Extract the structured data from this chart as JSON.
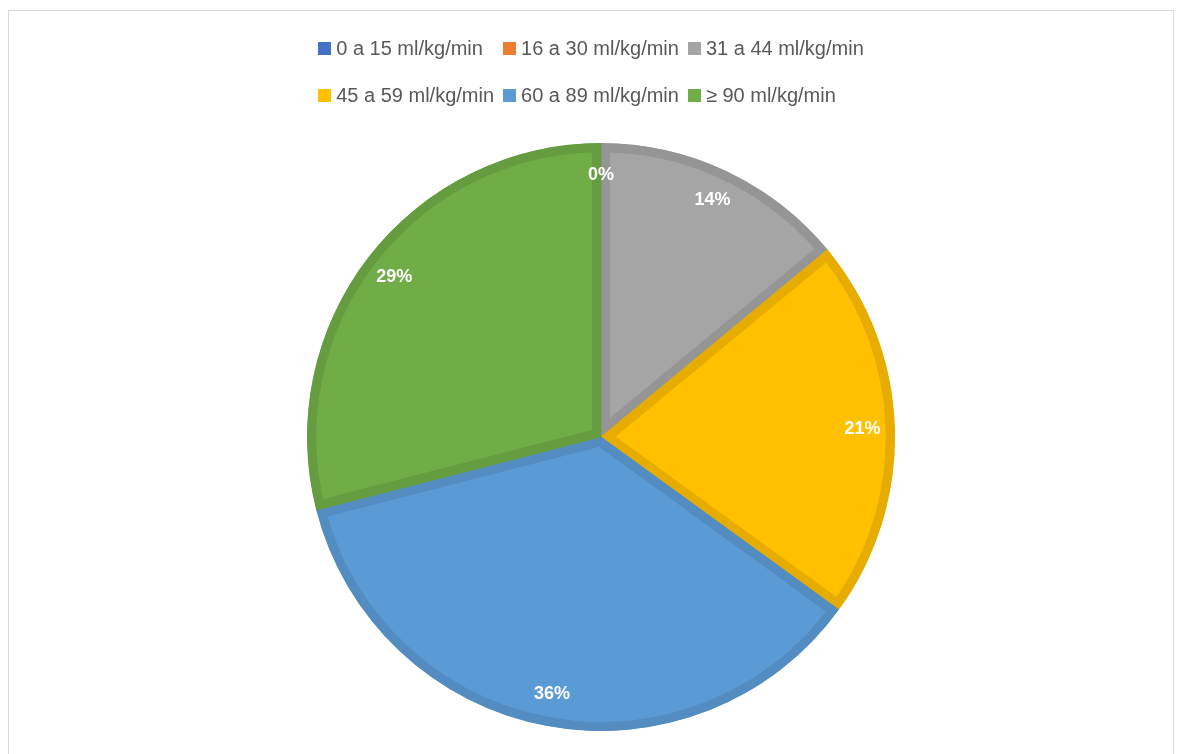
{
  "chart_data": {
    "type": "pie",
    "categories": [
      "0 a 15 ml/kg/min",
      "16 a 30 ml/kg/min",
      "31 a 44 ml/kg/min",
      "45 a 59 ml/kg/min",
      "60 a 89 ml/kg/min",
      "≥ 90 ml/kg/min"
    ],
    "values": [
      0,
      0,
      14,
      21,
      36,
      29
    ],
    "colors": [
      "#4472c4",
      "#ed7d31",
      "#a5a5a5",
      "#ffc000",
      "#5b9bd5",
      "#70ad47"
    ],
    "value_labels": [
      "0%",
      null,
      "14%",
      "21%",
      "36%",
      "29%"
    ],
    "legend": "top"
  }
}
